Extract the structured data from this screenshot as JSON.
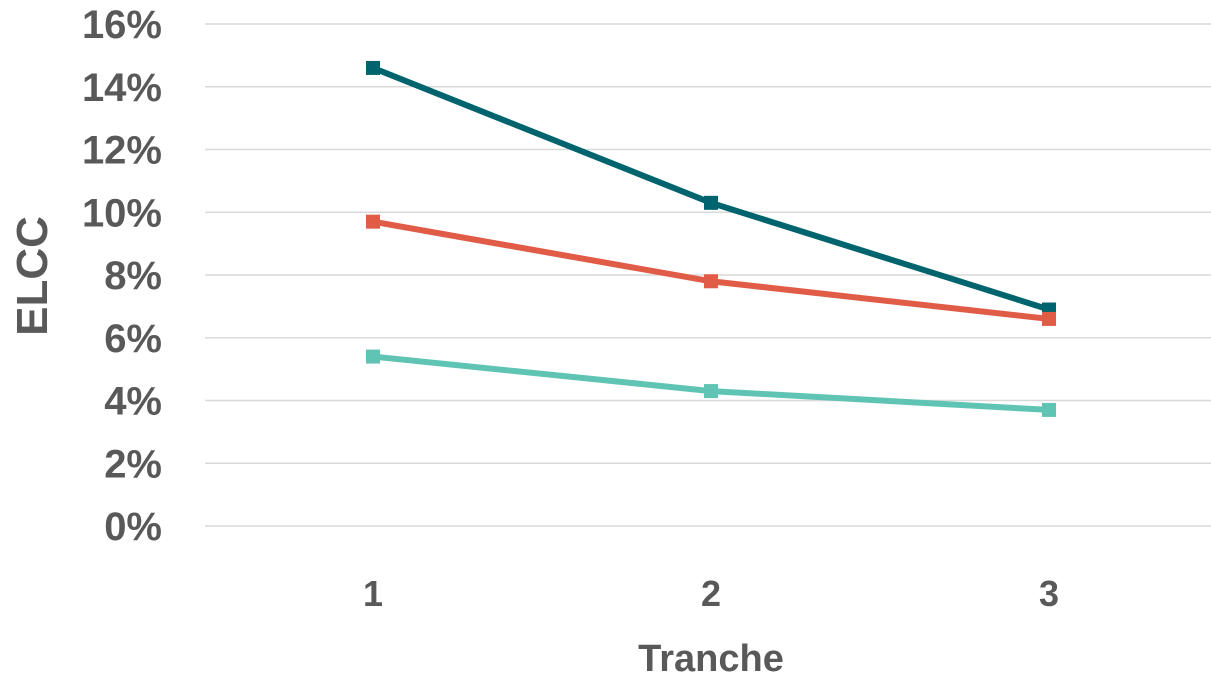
{
  "chart_data": {
    "type": "line",
    "title": "",
    "xlabel": "Tranche",
    "ylabel": "ELCC",
    "categories": [
      "1",
      "2",
      "3"
    ],
    "ylim": [
      0,
      16
    ],
    "yticks": [
      "0%",
      "2%",
      "4%",
      "6%",
      "8%",
      "10%",
      "12%",
      "14%",
      "16%"
    ],
    "grid": true,
    "legend": "none",
    "series": [
      {
        "color": "#00646e",
        "values": [
          14.6,
          10.3,
          6.9
        ]
      },
      {
        "color": "#e05c47",
        "values": [
          9.7,
          7.8,
          6.6
        ]
      },
      {
        "color": "#5fc4b4",
        "values": [
          5.4,
          4.3,
          3.7
        ]
      }
    ]
  }
}
